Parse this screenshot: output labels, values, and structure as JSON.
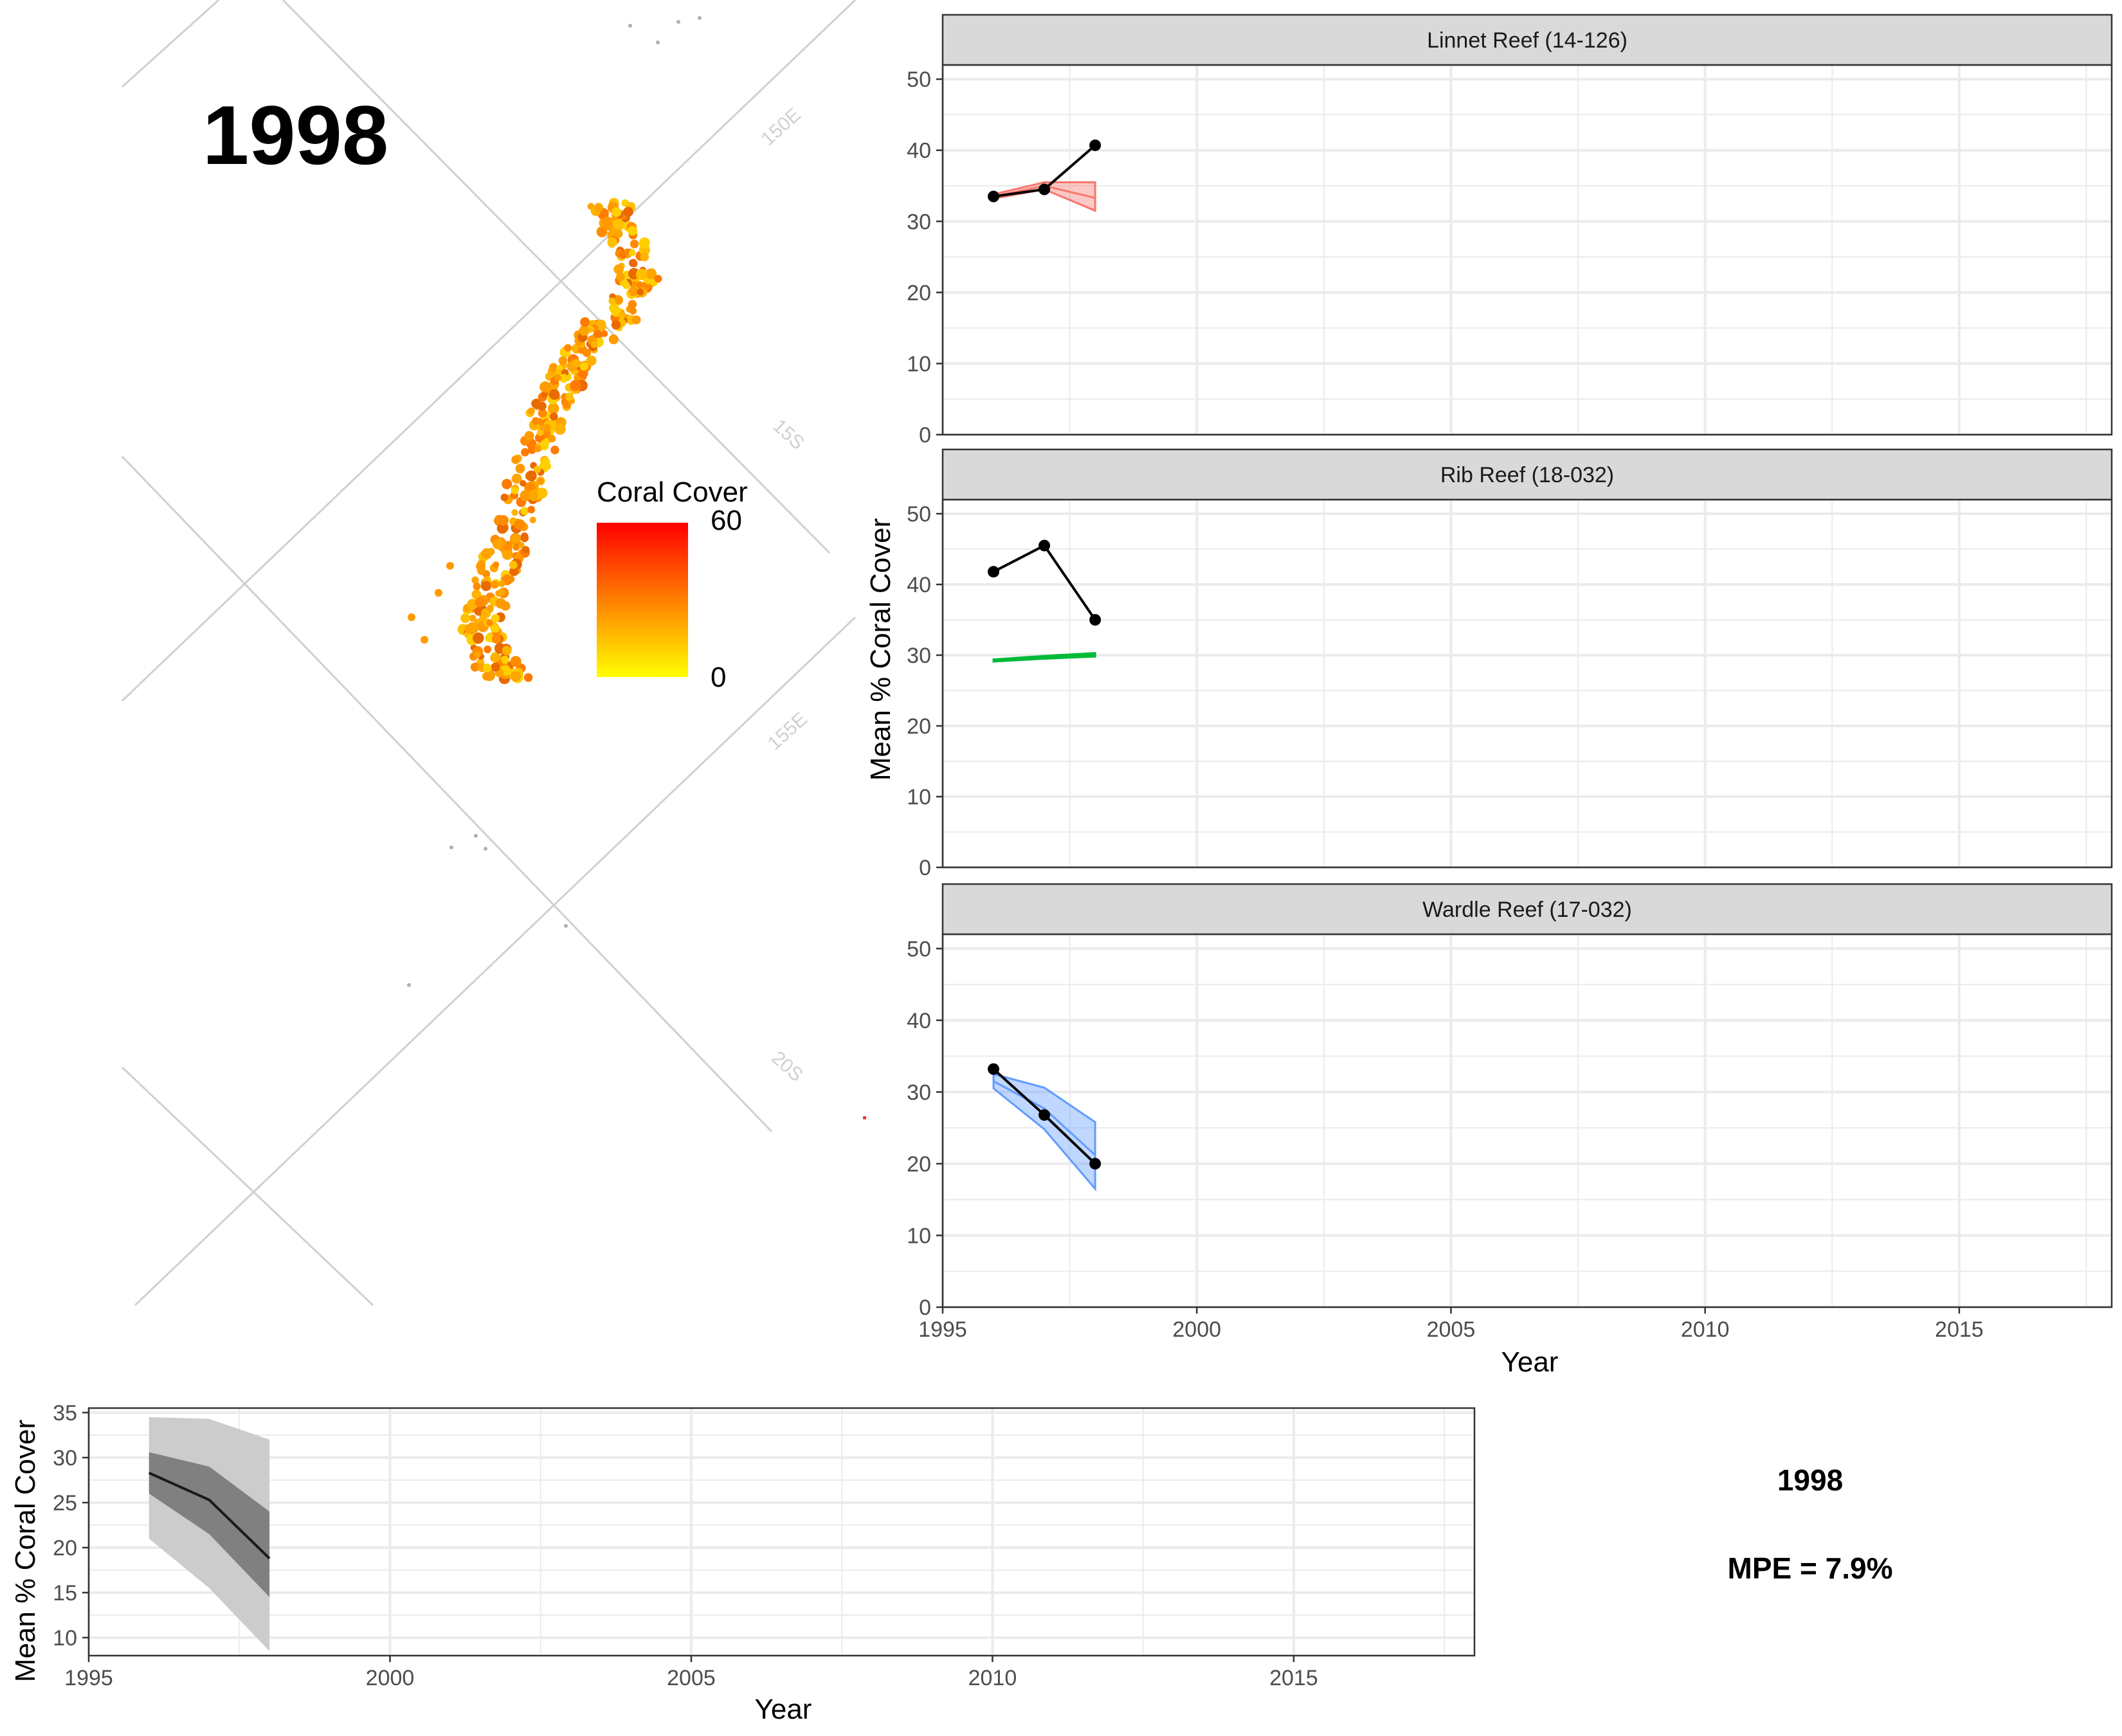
{
  "map": {
    "year_label": "1998",
    "graticule_labels": [
      "150E",
      "15S",
      "155E",
      "20S"
    ],
    "legend": {
      "title": "Coral Cover",
      "max_label": "60",
      "min_label": "0",
      "color_high": "#ff0000",
      "color_low": "#ffff00"
    }
  },
  "summary": {
    "year": "1998",
    "mpe": "MPE = 7.9%"
  },
  "colors": {
    "linnet": "#f8766d",
    "rib": "#00ba38",
    "wardle": "#619cff",
    "observed": "#000000",
    "overall_line": "#1a1a1a",
    "overall_inner": "#808080",
    "overall_outer": "#cccccc"
  },
  "chart_data": [
    {
      "type": "line",
      "title": "Linnet Reef (14-126)",
      "xlabel": "Year",
      "ylabel": "Mean % Coral Cover",
      "xlim": [
        1995,
        2018
      ],
      "ylim": [
        0,
        52
      ],
      "x_ticks": [
        1995,
        2000,
        2005,
        2010,
        2015
      ],
      "y_ticks": [
        0,
        10,
        20,
        30,
        40,
        50
      ],
      "grid": true,
      "series": [
        {
          "x": [
            1996,
            1997,
            1998
          ],
          "values": [
            33.5,
            34.5,
            40.7
          ]
        }
      ],
      "band": {
        "x": [
          1996,
          1997,
          1998
        ],
        "lower": [
          33.2,
          34.5,
          31.5
        ],
        "upper": [
          33.8,
          35.5,
          35.5
        ],
        "mid": [
          33.5,
          35.0,
          33.3
        ]
      }
    },
    {
      "type": "line",
      "title": "Rib Reef (18-032)",
      "xlabel": "Year",
      "ylabel": "Mean % Coral Cover",
      "xlim": [
        1995,
        2018
      ],
      "ylim": [
        0,
        52
      ],
      "x_ticks": [
        1995,
        2000,
        2005,
        2010,
        2015
      ],
      "y_ticks": [
        0,
        10,
        20,
        30,
        40,
        50
      ],
      "grid": true,
      "series": [
        {
          "x": [
            1996,
            1997,
            1998
          ],
          "values": [
            41.8,
            45.5,
            35.0
          ]
        }
      ],
      "band": {
        "x": [
          1996,
          1997,
          1998
        ],
        "lower": [
          29.1,
          29.5,
          29.8
        ],
        "upper": [
          29.4,
          29.9,
          30.3
        ],
        "mid": [
          29.25,
          29.7,
          30.05
        ]
      }
    },
    {
      "type": "line",
      "title": "Wardle Reef (17-032)",
      "xlabel": "Year",
      "ylabel": "Mean % Coral Cover",
      "xlim": [
        1995,
        2018
      ],
      "ylim": [
        0,
        52
      ],
      "x_ticks": [
        1995,
        2000,
        2005,
        2010,
        2015
      ],
      "y_ticks": [
        0,
        10,
        20,
        30,
        40,
        50
      ],
      "grid": true,
      "series": [
        {
          "x": [
            1996,
            1997,
            1998
          ],
          "values": [
            33.2,
            26.8,
            20.0
          ]
        }
      ],
      "band": {
        "x": [
          1996,
          1997,
          1998
        ],
        "lower": [
          30.5,
          24.8,
          16.5
        ],
        "upper": [
          32.5,
          30.6,
          25.8
        ],
        "mid": [
          31.5,
          27.7,
          21.2
        ]
      }
    },
    {
      "type": "area",
      "title": "",
      "xlabel": "Year",
      "ylabel": "Mean % Coral Cover",
      "xlim": [
        1995,
        2018
      ],
      "ylim": [
        8,
        35.5
      ],
      "x_ticks": [
        1995,
        2000,
        2005,
        2010,
        2015
      ],
      "y_ticks": [
        10,
        15,
        20,
        25,
        30,
        35
      ],
      "grid": true,
      "series": [
        {
          "x": [
            1996,
            1997,
            1998
          ],
          "values": [
            28.3,
            25.3,
            18.8
          ]
        }
      ],
      "outer_band": {
        "x": [
          1996,
          1997,
          1998
        ],
        "lower": [
          21.0,
          15.5,
          8.5
        ],
        "upper": [
          34.5,
          34.3,
          32.0
        ]
      },
      "inner_band": {
        "x": [
          1996,
          1997,
          1998
        ],
        "lower": [
          26.0,
          21.5,
          14.5
        ],
        "upper": [
          30.6,
          29.0,
          24.0
        ]
      }
    }
  ]
}
